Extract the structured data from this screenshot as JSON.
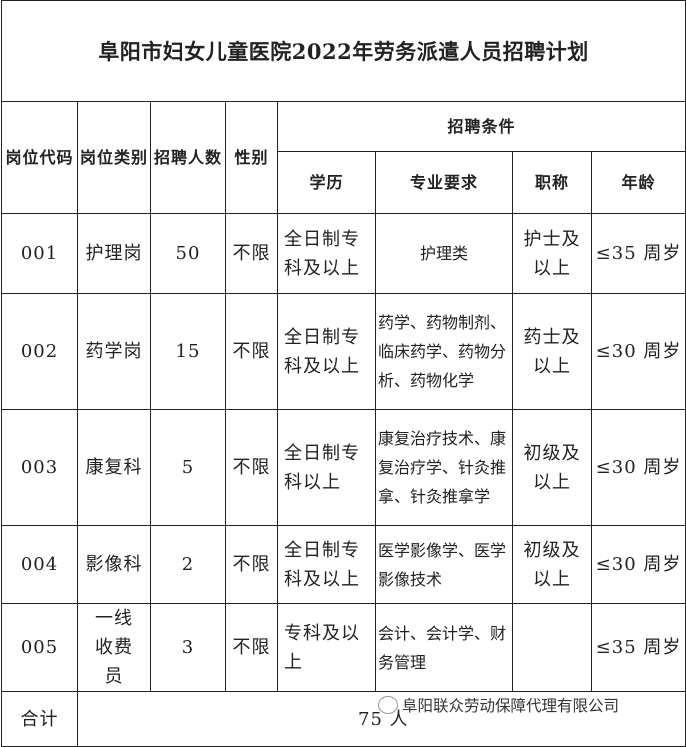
{
  "title": "阜阳市妇女儿童医院2022年劳务派遣人员招聘计划",
  "headers": {
    "code": "岗位代码",
    "category": "岗位类别",
    "count": "招聘人数",
    "gender": "性别",
    "conditions": "招聘条件",
    "education": "学历",
    "major": "专业要求",
    "title_rank": "职称",
    "age": "年龄"
  },
  "rows": [
    {
      "code": "001",
      "category": "护理岗",
      "count": "50",
      "gender": "不限",
      "education": "全日制专科及以上",
      "major": "护理类",
      "title_rank": "护士及以上",
      "age": "≤35 周岁"
    },
    {
      "code": "002",
      "category": "药学岗",
      "count": "15",
      "gender": "不限",
      "education": "全日制专科及以上",
      "major": "药学、药物制剂、临床药学、药物分析、药物化学",
      "title_rank": "药士及以上",
      "age": "≤30 周岁"
    },
    {
      "code": "003",
      "category": "康复科",
      "count": "5",
      "gender": "不限",
      "education": "全日制专科以上",
      "major": "康复治疗技术、康复治疗学、针灸推拿、针灸推拿学",
      "title_rank": "初级及以上",
      "age": "≤30 周岁"
    },
    {
      "code": "004",
      "category": "影像科",
      "count": "2",
      "gender": "不限",
      "education": "全日制专科及以上",
      "major": "医学影像学、医学影像技术",
      "title_rank": "初级及以上",
      "age": "≤30 周岁"
    },
    {
      "code": "005",
      "category": "一线收费员",
      "count": "3",
      "gender": "不限",
      "education": "专科及以上",
      "major": "会计、会计学、财务管理",
      "title_rank": "",
      "age": "≤35 周岁"
    }
  ],
  "total": {
    "label": "合计",
    "value": "75 人"
  },
  "watermark": "阜阳联众劳动保障代理有限公司"
}
